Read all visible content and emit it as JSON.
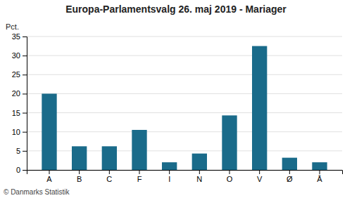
{
  "chart_data": {
    "type": "bar",
    "title": "Europa-Parlamentsvalg 26. maj 2019 - Mariager",
    "categories": [
      "A",
      "B",
      "C",
      "F",
      "I",
      "N",
      "O",
      "V",
      "Ø",
      "Å"
    ],
    "values": [
      20.0,
      6.2,
      6.2,
      10.5,
      2.0,
      4.3,
      14.3,
      32.5,
      3.2,
      2.0
    ],
    "color": "#1a6b8a",
    "ylabel": "Pct.",
    "ylim": [
      0,
      35
    ],
    "yticks": [
      0,
      5,
      10,
      15,
      20,
      25,
      30,
      35
    ],
    "grid": true,
    "annotations": [
      "© Danmarks Statistik"
    ]
  }
}
